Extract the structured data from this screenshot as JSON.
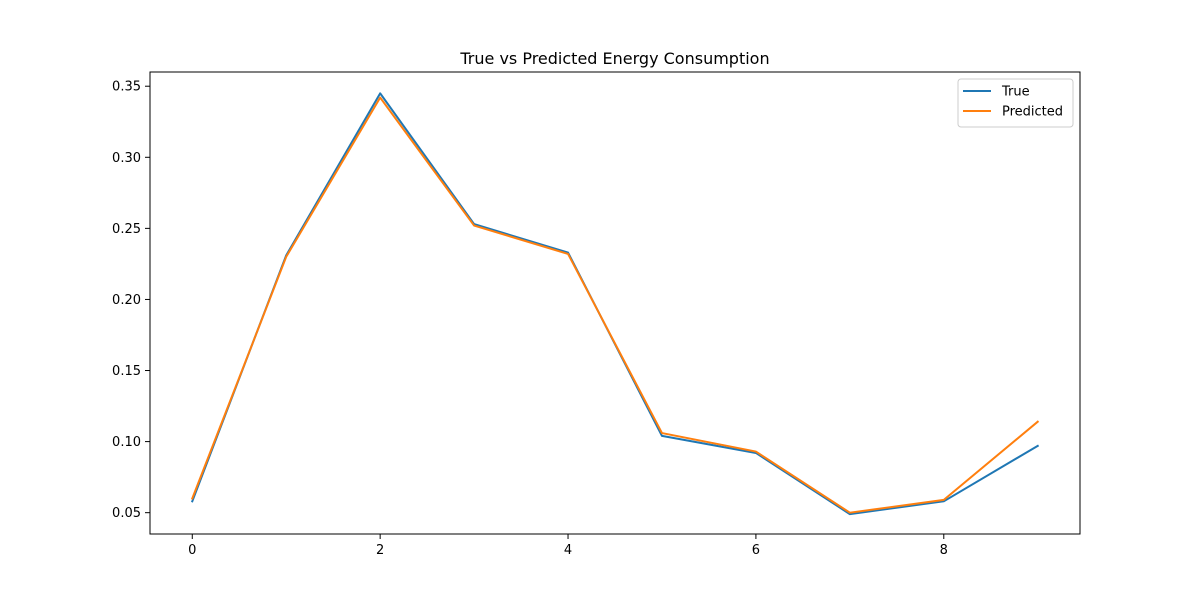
{
  "chart_data": {
    "type": "line",
    "title": "True vs Predicted Energy Consumption",
    "xlabel": "",
    "ylabel": "",
    "x": [
      0,
      1,
      2,
      3,
      4,
      5,
      6,
      7,
      8,
      9
    ],
    "xlim": [
      -0.45,
      9.45
    ],
    "ylim": [
      0.035,
      0.36
    ],
    "x_ticks": [
      0,
      2,
      4,
      6,
      8
    ],
    "x_tick_labels": [
      "0",
      "2",
      "4",
      "6",
      "8"
    ],
    "y_ticks": [
      0.05,
      0.1,
      0.15,
      0.2,
      0.25,
      0.3,
      0.35
    ],
    "y_tick_labels": [
      "0.05",
      "0.10",
      "0.15",
      "0.20",
      "0.25",
      "0.30",
      "0.35"
    ],
    "grid": false,
    "legend_position": "top-right",
    "series": [
      {
        "name": "True",
        "color": "#1f77b4",
        "values": [
          0.058,
          0.231,
          0.345,
          0.253,
          0.233,
          0.104,
          0.092,
          0.049,
          0.058,
          0.097
        ]
      },
      {
        "name": "Predicted",
        "color": "#ff7f0e",
        "values": [
          0.06,
          0.23,
          0.342,
          0.252,
          0.232,
          0.106,
          0.093,
          0.05,
          0.059,
          0.114
        ]
      }
    ]
  }
}
